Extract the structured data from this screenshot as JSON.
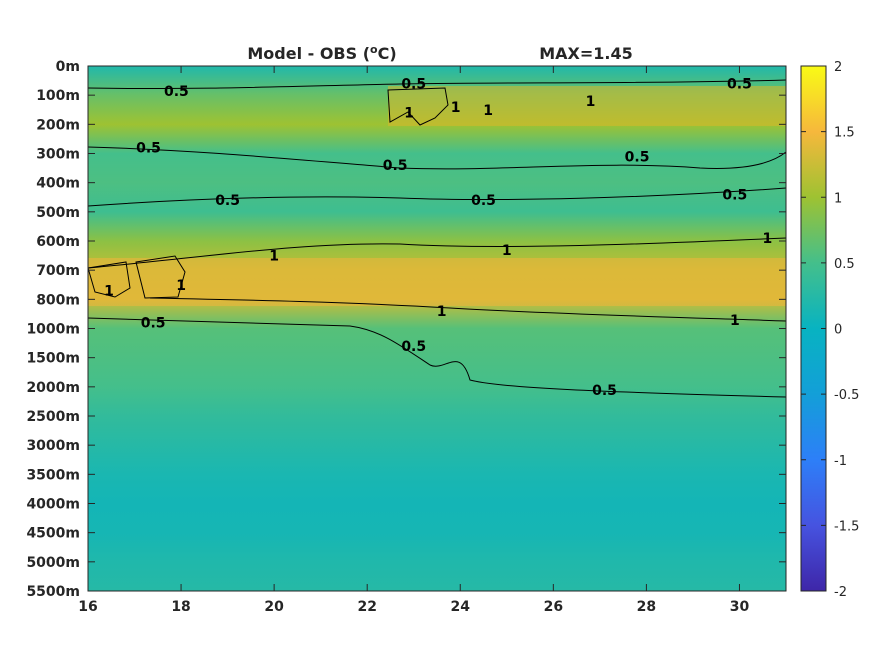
{
  "chart_data": {
    "type": "heatmap",
    "title_left": "Model - OBS (",
    "title_degree": "o",
    "title_unit": "C)",
    "title_max": "MAX=1.45",
    "x_ticks": [
      16,
      18,
      20,
      22,
      24,
      26,
      28,
      30
    ],
    "xlim": [
      16,
      31
    ],
    "y_ticks": [
      "0m",
      "100m",
      "200m",
      "300m",
      "400m",
      "500m",
      "600m",
      "700m",
      "800m",
      "1000m",
      "1500m",
      "2000m",
      "2500m",
      "3000m",
      "3500m",
      "4000m",
      "4500m",
      "5000m",
      "5500m"
    ],
    "colorbar": {
      "ticks": [
        "2",
        "1.5",
        "1",
        "0.5",
        "0",
        "-0.5",
        "-1",
        "-1.5",
        "-2"
      ],
      "range": [
        -2,
        2
      ],
      "colormap": "parula"
    },
    "depth_profile": [
      {
        "depth": "0m",
        "value": 0.2
      },
      {
        "depth": "100m",
        "value": 0.7
      },
      {
        "depth": "200m",
        "value": 1.0
      },
      {
        "depth": "300m",
        "value": 0.5
      },
      {
        "depth": "400m",
        "value": 0.55
      },
      {
        "depth": "500m",
        "value": 0.45
      },
      {
        "depth": "600m",
        "value": 0.9
      },
      {
        "depth": "700m",
        "value": 1.2
      },
      {
        "depth": "800m",
        "value": 1.25
      },
      {
        "depth": "1000m",
        "value": 0.6
      },
      {
        "depth": "1500m",
        "value": 0.55
      },
      {
        "depth": "2000m",
        "value": 0.5
      },
      {
        "depth": "2500m",
        "value": 0.35
      },
      {
        "depth": "3000m",
        "value": 0.25
      },
      {
        "depth": "3500m",
        "value": 0.15
      },
      {
        "depth": "4000m",
        "value": 0.1
      },
      {
        "depth": "4500m",
        "value": 0.12
      },
      {
        "depth": "5000m",
        "value": 0.2
      },
      {
        "depth": "5500m",
        "value": 0.25
      }
    ],
    "contour_labels": [
      {
        "text": "0.5",
        "x": 17.9,
        "depth_index": 0.85
      },
      {
        "text": "0.5",
        "x": 23.0,
        "depth_index": 0.6
      },
      {
        "text": "0.5",
        "x": 30.0,
        "depth_index": 0.6
      },
      {
        "text": "1",
        "x": 22.9,
        "depth_index": 1.6
      },
      {
        "text": "1",
        "x": 23.9,
        "depth_index": 1.4
      },
      {
        "text": "1",
        "x": 24.6,
        "depth_index": 1.5
      },
      {
        "text": "1",
        "x": 26.8,
        "depth_index": 1.2
      },
      {
        "text": "0.5",
        "x": 17.3,
        "depth_index": 2.8
      },
      {
        "text": "0.5",
        "x": 22.6,
        "depth_index": 3.4
      },
      {
        "text": "0.5",
        "x": 27.8,
        "depth_index": 3.1
      },
      {
        "text": "0.5",
        "x": 19.0,
        "depth_index": 4.6
      },
      {
        "text": "0.5",
        "x": 24.5,
        "depth_index": 4.6
      },
      {
        "text": "0.5",
        "x": 29.9,
        "depth_index": 4.4
      },
      {
        "text": "1",
        "x": 20.0,
        "depth_index": 6.5
      },
      {
        "text": "1",
        "x": 25.0,
        "depth_index": 6.3
      },
      {
        "text": "1",
        "x": 30.6,
        "depth_index": 5.9
      },
      {
        "text": "1",
        "x": 16.45,
        "depth_index": 7.7
      },
      {
        "text": "1",
        "x": 18.0,
        "depth_index": 7.5
      },
      {
        "text": "1",
        "x": 23.6,
        "depth_index": 8.4
      },
      {
        "text": "1",
        "x": 29.9,
        "depth_index": 8.7
      },
      {
        "text": "0.5",
        "x": 17.4,
        "depth_index": 8.8
      },
      {
        "text": "0.5",
        "x": 23.0,
        "depth_index": 9.6
      },
      {
        "text": "0.5",
        "x": 27.1,
        "depth_index": 11.1
      }
    ]
  }
}
